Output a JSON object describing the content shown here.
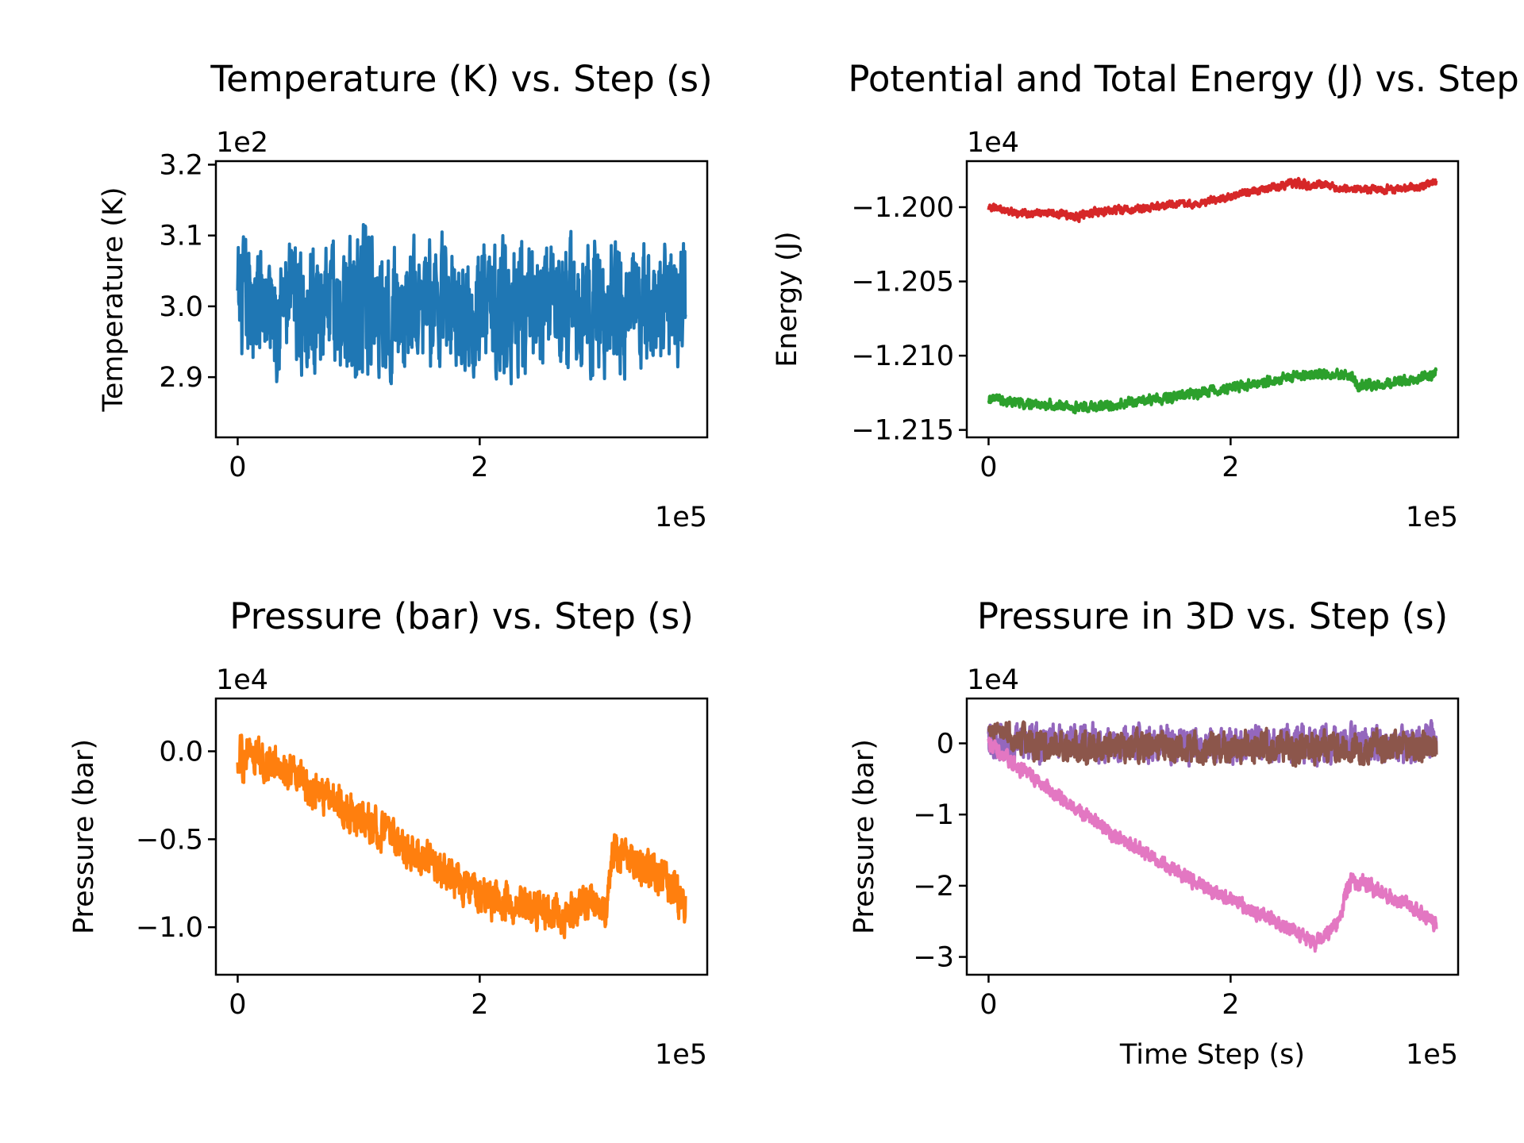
{
  "chart_data": [
    {
      "type": "line",
      "title": "Temperature (K) vs. Step (s)",
      "xlabel": "",
      "ylabel": "Temperature (K)",
      "x_offset_label": "1e5",
      "y_offset_label": "1e2",
      "xlim": [
        -0.18,
        3.88
      ],
      "ylim": [
        2.815,
        3.205
      ],
      "xticks": [
        0,
        2
      ],
      "xtick_labels": [
        "0",
        "2"
      ],
      "yticks": [
        2.9,
        3.0,
        3.1,
        3.2
      ],
      "ytick_labels": [
        "2.9",
        "3.0",
        "3.1",
        "3.2"
      ],
      "series": [
        {
          "color": "#1f77b4",
          "x": [
            0,
            0.25,
            0.5,
            0.75,
            1.0,
            1.25,
            1.5,
            1.75,
            2.0,
            2.25,
            2.5,
            2.75,
            3.0,
            3.25,
            3.5,
            3.7
          ],
          "y": [
            3.0,
            3.0,
            3.0,
            3.0,
            3.0,
            3.0,
            3.0,
            3.0,
            3.0,
            3.0,
            3.0,
            3.0,
            3.0,
            3.0,
            3.0,
            3.0
          ],
          "band": [
            0.1,
            0.1,
            0.1,
            0.1,
            0.12,
            0.1,
            0.1,
            0.1,
            0.1,
            0.11,
            0.1,
            0.1,
            0.11,
            0.1,
            0.1,
            0.1
          ]
        }
      ]
    },
    {
      "type": "line",
      "title": "Potential and Total Energy (J) vs. Step (s)",
      "xlabel": "",
      "ylabel": "Energy (J)",
      "x_offset_label": "1e5",
      "y_offset_label": "1e4",
      "xlim": [
        -0.18,
        3.88
      ],
      "ylim": [
        -1.2155,
        -1.1969
      ],
      "xticks": [
        0,
        2
      ],
      "xtick_labels": [
        "0",
        "2"
      ],
      "yticks": [
        -1.215,
        -1.21,
        -1.205,
        -1.2
      ],
      "ytick_labels": [
        "−1.215",
        "−1.210",
        "−1.205",
        "−1.200"
      ],
      "series": [
        {
          "color": "#d62728",
          "x": [
            0,
            0.25,
            0.5,
            0.75,
            1.0,
            1.25,
            1.5,
            1.75,
            2.0,
            2.25,
            2.5,
            2.75,
            3.0,
            3.25,
            3.5,
            3.7
          ],
          "y": [
            -1.2,
            -1.2004,
            -1.2004,
            -1.2006,
            -1.2002,
            -1.2001,
            -1.1998,
            -1.1997,
            -1.1993,
            -1.1988,
            -1.1984,
            -1.1985,
            -1.1988,
            -1.1988,
            -1.1987,
            -1.1983
          ],
          "band": [
            0.0003,
            0.0003,
            0.0003,
            0.0004,
            0.0003,
            0.0003,
            0.0003,
            0.0003,
            0.0003,
            0.0003,
            0.0004,
            0.0003,
            0.0003,
            0.0003,
            0.0003,
            0.0003
          ]
        },
        {
          "color": "#2ca02c",
          "x": [
            0,
            0.25,
            0.5,
            0.75,
            1.0,
            1.25,
            1.5,
            1.75,
            2.0,
            2.25,
            2.5,
            2.75,
            3.0,
            3.05,
            3.25,
            3.5,
            3.7
          ],
          "y": [
            -1.2128,
            -1.2132,
            -1.2133,
            -1.2135,
            -1.2133,
            -1.2131,
            -1.2128,
            -1.2125,
            -1.2122,
            -1.2118,
            -1.2114,
            -1.2112,
            -1.2113,
            -1.2121,
            -1.2119,
            -1.2116,
            -1.2112
          ],
          "band": [
            0.0004,
            0.0004,
            0.0004,
            0.0004,
            0.0004,
            0.0004,
            0.0004,
            0.0004,
            0.0004,
            0.0004,
            0.0004,
            0.0004,
            0.0004,
            0.0004,
            0.0004,
            0.0004,
            0.0004
          ]
        }
      ]
    },
    {
      "type": "line",
      "title": "Pressure (bar) vs. Step (s)",
      "xlabel": "",
      "ylabel": "Pressure (bar)",
      "x_offset_label": "1e5",
      "y_offset_label": "1e4",
      "xlim": [
        -0.18,
        3.88
      ],
      "ylim": [
        -1.27,
        0.3
      ],
      "xticks": [
        0,
        2
      ],
      "xtick_labels": [
        "0",
        "2"
      ],
      "yticks": [
        -1.0,
        -0.5,
        0.0
      ],
      "ytick_labels": [
        "−1.0",
        "−0.5",
        "0.0"
      ],
      "series": [
        {
          "color": "#ff7f0e",
          "x": [
            0,
            0.1,
            0.25,
            0.5,
            0.75,
            1.0,
            1.25,
            1.5,
            1.75,
            2.0,
            2.25,
            2.5,
            2.7,
            2.9,
            3.05,
            3.1,
            3.3,
            3.5,
            3.7
          ],
          "y": [
            -0.05,
            0.0,
            -0.06,
            -0.16,
            -0.26,
            -0.38,
            -0.48,
            -0.6,
            -0.72,
            -0.82,
            -0.86,
            -0.9,
            -0.92,
            -0.85,
            -0.9,
            -0.55,
            -0.62,
            -0.72,
            -0.85
          ],
          "band": [
            0.15,
            0.14,
            0.13,
            0.13,
            0.13,
            0.13,
            0.13,
            0.13,
            0.13,
            0.13,
            0.13,
            0.13,
            0.13,
            0.13,
            0.1,
            0.13,
            0.13,
            0.13,
            0.13
          ]
        }
      ]
    },
    {
      "type": "line",
      "title": "Pressure in 3D vs. Step (s)",
      "xlabel": "Time Step (s)",
      "ylabel": "Pressure (bar)",
      "x_offset_label": "1e5",
      "y_offset_label": "1e4",
      "xlim": [
        -0.18,
        3.88
      ],
      "ylim": [
        -3.25,
        0.63
      ],
      "xticks": [
        0,
        2
      ],
      "xtick_labels": [
        "0",
        "2"
      ],
      "yticks": [
        -3,
        -2,
        -1,
        0
      ],
      "ytick_labels": [
        "−3",
        "−2",
        "−1",
        "0"
      ],
      "series": [
        {
          "color": "#9467bd",
          "x": [
            0,
            0.25,
            0.5,
            1.0,
            1.5,
            2.0,
            2.5,
            3.0,
            3.5,
            3.7
          ],
          "y": [
            0.0,
            0.0,
            0.0,
            0.0,
            0.0,
            0.0,
            0.0,
            0.0,
            0.0,
            0.0
          ],
          "band": [
            0.3,
            0.3,
            0.3,
            0.3,
            0.3,
            0.3,
            0.3,
            0.3,
            0.3,
            0.3
          ]
        },
        {
          "color": "#8c564b",
          "x": [
            0,
            0.1,
            0.25,
            0.5,
            1.0,
            1.5,
            2.0,
            2.5,
            3.0,
            3.5,
            3.7
          ],
          "y": [
            0.15,
            0.2,
            0.05,
            -0.05,
            -0.05,
            -0.05,
            -0.05,
            -0.05,
            -0.05,
            -0.05,
            -0.05
          ],
          "band": [
            0.12,
            0.12,
            0.25,
            0.25,
            0.25,
            0.25,
            0.25,
            0.25,
            0.25,
            0.25,
            0.25
          ]
        },
        {
          "color": "#e377c2",
          "x": [
            0,
            0.25,
            0.5,
            0.75,
            1.0,
            1.25,
            1.5,
            1.75,
            2.0,
            2.25,
            2.5,
            2.7,
            2.9,
            2.95,
            3.0,
            3.25,
            3.5,
            3.7
          ],
          "y": [
            0.0,
            -0.35,
            -0.65,
            -0.95,
            -1.25,
            -1.5,
            -1.75,
            -1.98,
            -2.2,
            -2.4,
            -2.6,
            -2.82,
            -2.5,
            -2.1,
            -1.9,
            -2.1,
            -2.3,
            -2.55
          ],
          "band": [
            0.12,
            0.12,
            0.12,
            0.12,
            0.12,
            0.12,
            0.12,
            0.12,
            0.12,
            0.12,
            0.12,
            0.12,
            0.14,
            0.14,
            0.14,
            0.12,
            0.12,
            0.12
          ]
        }
      ]
    }
  ]
}
